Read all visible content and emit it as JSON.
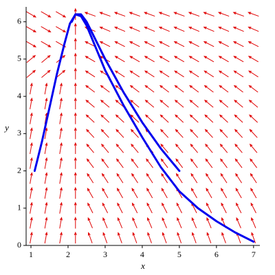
{
  "chart_data": {
    "type": "field",
    "xlabel": "x",
    "ylabel": "y",
    "xlim": [
      0.87,
      7.17
    ],
    "ylim": [
      0,
      6.4
    ],
    "xticks": [
      1,
      2,
      3,
      4,
      5,
      6,
      7
    ],
    "yticks": [
      0,
      1,
      2,
      3,
      4,
      5,
      6
    ],
    "field": {
      "color": "#e00000",
      "x": [
        1.0,
        1.4,
        1.8,
        2.2,
        2.6,
        3.0,
        3.4,
        3.8,
        4.2,
        4.6,
        5.0,
        5.4,
        5.8,
        6.2,
        6.6,
        7.0
      ],
      "y": [
        0.2,
        0.6,
        1.0,
        1.4,
        1.8,
        2.2,
        2.6,
        3.0,
        3.4,
        3.8,
        4.2,
        4.6,
        5.0,
        5.4,
        5.8,
        6.2
      ],
      "angles": [
        [
          80,
          80,
          80,
          90,
          110,
          110,
          110,
          110,
          110,
          110,
          110,
          110,
          110,
          110,
          110,
          110
        ],
        [
          80,
          80,
          80,
          90,
          113,
          113,
          113,
          113,
          113,
          113,
          113,
          113,
          113,
          113,
          113,
          113
        ],
        [
          80,
          80,
          80,
          90,
          117,
          117,
          117,
          117,
          117,
          117,
          117,
          117,
          117,
          117,
          117,
          117
        ],
        [
          80,
          80,
          80,
          90,
          120,
          120,
          120,
          120,
          120,
          120,
          120,
          120,
          120,
          120,
          120,
          120
        ],
        [
          80,
          80,
          80,
          90,
          123,
          123,
          123,
          123,
          123,
          123,
          123,
          123,
          123,
          123,
          123,
          123
        ],
        [
          80,
          80,
          80,
          90,
          127,
          127,
          127,
          127,
          127,
          127,
          127,
          127,
          127,
          127,
          127,
          127
        ],
        [
          80,
          80,
          80,
          90,
          130,
          130,
          130,
          130,
          130,
          130,
          130,
          130,
          130,
          130,
          130,
          130
        ],
        [
          80,
          80,
          80,
          90,
          133,
          133,
          133,
          133,
          133,
          133,
          133,
          133,
          133,
          133,
          133,
          133
        ],
        [
          80,
          80,
          80,
          90,
          137,
          137,
          137,
          137,
          137,
          137,
          137,
          137,
          137,
          137,
          137,
          137
        ],
        [
          80,
          80,
          80,
          90,
          140,
          140,
          140,
          140,
          140,
          140,
          140,
          140,
          140,
          140,
          140,
          140
        ],
        [
          80,
          80,
          80,
          90,
          143,
          143,
          143,
          143,
          143,
          143,
          143,
          143,
          143,
          143,
          143,
          143
        ],
        [
          40,
          40,
          40,
          90,
          147,
          147,
          147,
          147,
          147,
          147,
          147,
          147,
          147,
          147,
          147,
          147
        ],
        [
          40,
          40,
          40,
          90,
          150,
          150,
          150,
          150,
          150,
          150,
          150,
          150,
          150,
          150,
          150,
          150
        ],
        [
          -30,
          -30,
          -30,
          90,
          153,
          153,
          153,
          153,
          153,
          153,
          153,
          153,
          153,
          153,
          153,
          153
        ],
        [
          -30,
          -30,
          -30,
          90,
          157,
          157,
          157,
          157,
          157,
          157,
          157,
          157,
          157,
          157,
          157,
          157
        ],
        [
          -30,
          -30,
          -30,
          90,
          160,
          160,
          160,
          160,
          160,
          160,
          160,
          160,
          160,
          160,
          160,
          160
        ]
      ]
    },
    "series": [
      {
        "color": "#0000ee",
        "x": [
          1.1,
          1.3,
          1.5,
          1.7,
          1.9,
          2.05,
          2.2,
          2.35,
          2.5,
          2.75,
          3,
          3.5,
          4,
          4.5,
          5,
          5.5,
          6,
          6.5,
          7
        ],
        "values": [
          2,
          2.8,
          3.7,
          4.6,
          5.4,
          5.95,
          6.2,
          6.15,
          5.9,
          5.3,
          4.7,
          3.75,
          2.9,
          2.1,
          1.45,
          1.0,
          0.65,
          0.35,
          0.1
        ]
      },
      {
        "color": "#0000ee",
        "x": [
          2.1,
          2.2,
          2.35,
          2.5,
          2.75,
          3,
          3.5,
          4,
          4.5,
          5
        ],
        "values": [
          6.0,
          6.2,
          6.2,
          6.0,
          5.5,
          5.0,
          4.1,
          3.3,
          2.6,
          2.0
        ]
      }
    ]
  }
}
